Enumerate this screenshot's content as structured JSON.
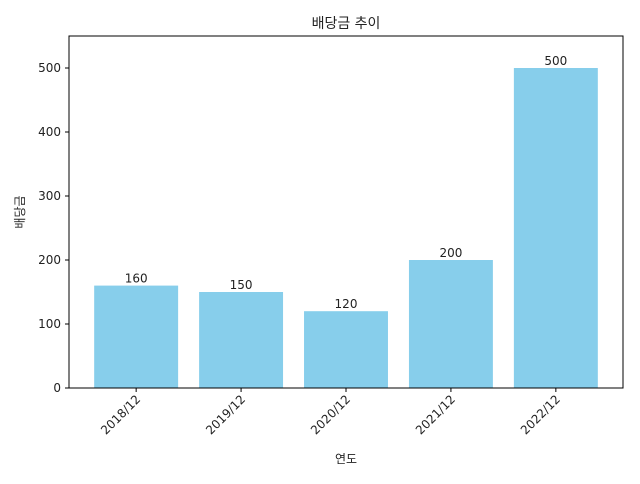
{
  "chart_data": {
    "type": "bar",
    "title": "배당금 추이",
    "xlabel": "연도",
    "ylabel": "배당금",
    "categories": [
      "2018/12",
      "2019/12",
      "2020/12",
      "2021/12",
      "2022/12"
    ],
    "values": [
      160,
      150,
      120,
      200,
      500
    ],
    "data_labels": [
      "160",
      "150",
      "120",
      "200",
      "500"
    ],
    "ylim": [
      0,
      550
    ],
    "yticks": [
      0,
      100,
      200,
      300,
      400,
      500
    ],
    "ytick_labels": [
      "0",
      "100",
      "200",
      "300",
      "400",
      "500"
    ],
    "bar_color": "#87CEEB",
    "grid": false,
    "xtick_rotation_deg": 45
  }
}
